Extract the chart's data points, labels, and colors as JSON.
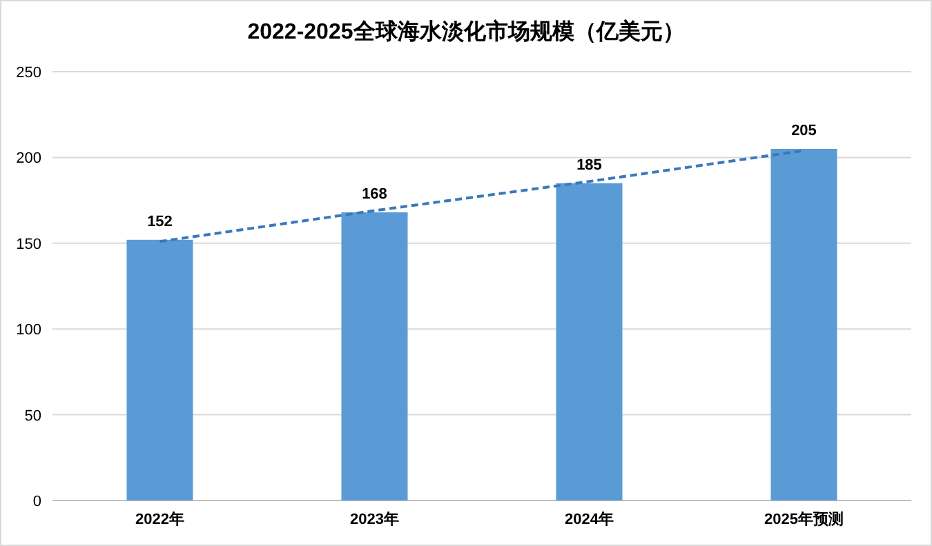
{
  "chart_data": {
    "type": "bar",
    "title": "2022-2025全球海水淡化市场规模（亿美元）",
    "categories": [
      "2022年",
      "2023年",
      "2024年",
      "2025年预测"
    ],
    "series": [
      {
        "color": "#5b9bd5",
        "values": [
          152,
          168,
          185,
          205
        ],
        "value_labels": [
          "152",
          "168",
          "185",
          "205"
        ]
      },
      {
        "type": "line",
        "color": "#3a78bd",
        "line_style": "dashed",
        "values": [
          151,
          169,
          186,
          204
        ]
      }
    ],
    "ylim": [
      0,
      250
    ],
    "yticks": [
      0,
      50,
      100,
      150,
      200,
      250
    ],
    "grid": "y"
  }
}
